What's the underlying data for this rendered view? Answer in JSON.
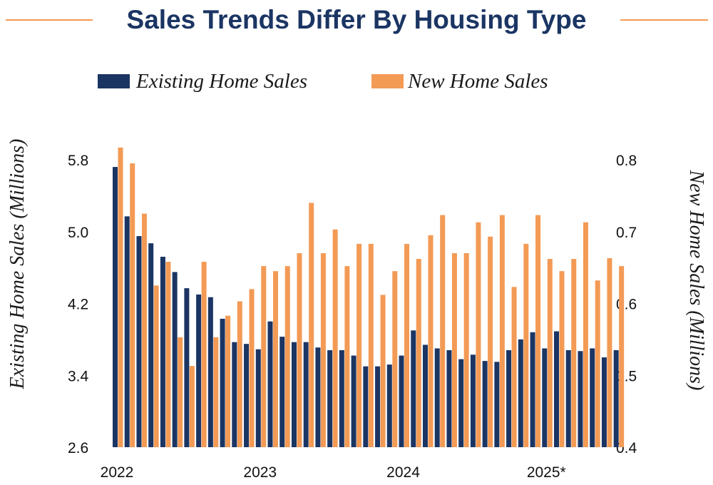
{
  "chart_data": {
    "type": "bar",
    "title": "Sales Trends Differ By Housing Type",
    "legend": {
      "placement": "top-center"
    },
    "ylabel_left": "Existing Home Sales (Millions)",
    "ylabel_right": "New Home Sales (Millions)",
    "ylim_left": [
      2.6,
      5.8
    ],
    "ylim_right": [
      0.4,
      0.8
    ],
    "yticks_left": [
      "2.6",
      "3.4",
      "4.2",
      "5.0",
      "5.8"
    ],
    "yticks_right": [
      "0.4",
      "0.5",
      "0.6",
      "0.7",
      "0.8"
    ],
    "xticks": [
      "2022",
      "2023",
      "2024",
      "2025*"
    ],
    "x_unit": "month",
    "x_start": "2022-01",
    "grid": false,
    "colors": {
      "existing": "#1b3563",
      "new": "#f39a55",
      "title": "#1b3563",
      "rule": "#f39a55"
    },
    "series": [
      {
        "name": "Existing Home Sales",
        "axis": "left",
        "values": [
          5.72,
          5.17,
          4.95,
          4.87,
          4.72,
          4.55,
          4.37,
          4.3,
          4.27,
          4.03,
          3.77,
          3.75,
          3.69,
          4.0,
          3.83,
          3.77,
          3.77,
          3.71,
          3.68,
          3.68,
          3.62,
          3.5,
          3.5,
          3.52,
          3.62,
          3.9,
          3.74,
          3.7,
          3.68,
          3.58,
          3.63,
          3.56,
          3.55,
          3.68,
          3.8,
          3.88,
          3.7,
          3.89,
          3.68,
          3.67,
          3.7,
          3.6,
          3.68
        ]
      },
      {
        "name": "New Home Sales",
        "axis": "right",
        "values": [
          0.817,
          0.795,
          0.725,
          0.625,
          0.658,
          0.553,
          0.513,
          0.658,
          0.553,
          0.583,
          0.603,
          0.62,
          0.652,
          0.645,
          0.652,
          0.67,
          0.74,
          0.67,
          0.703,
          0.652,
          0.683,
          0.683,
          0.612,
          0.645,
          0.683,
          0.662,
          0.695,
          0.723,
          0.67,
          0.67,
          0.713,
          0.693,
          0.723,
          0.623,
          0.683,
          0.723,
          0.662,
          0.645,
          0.662,
          0.713,
          0.632,
          0.663,
          0.652
        ]
      }
    ]
  }
}
